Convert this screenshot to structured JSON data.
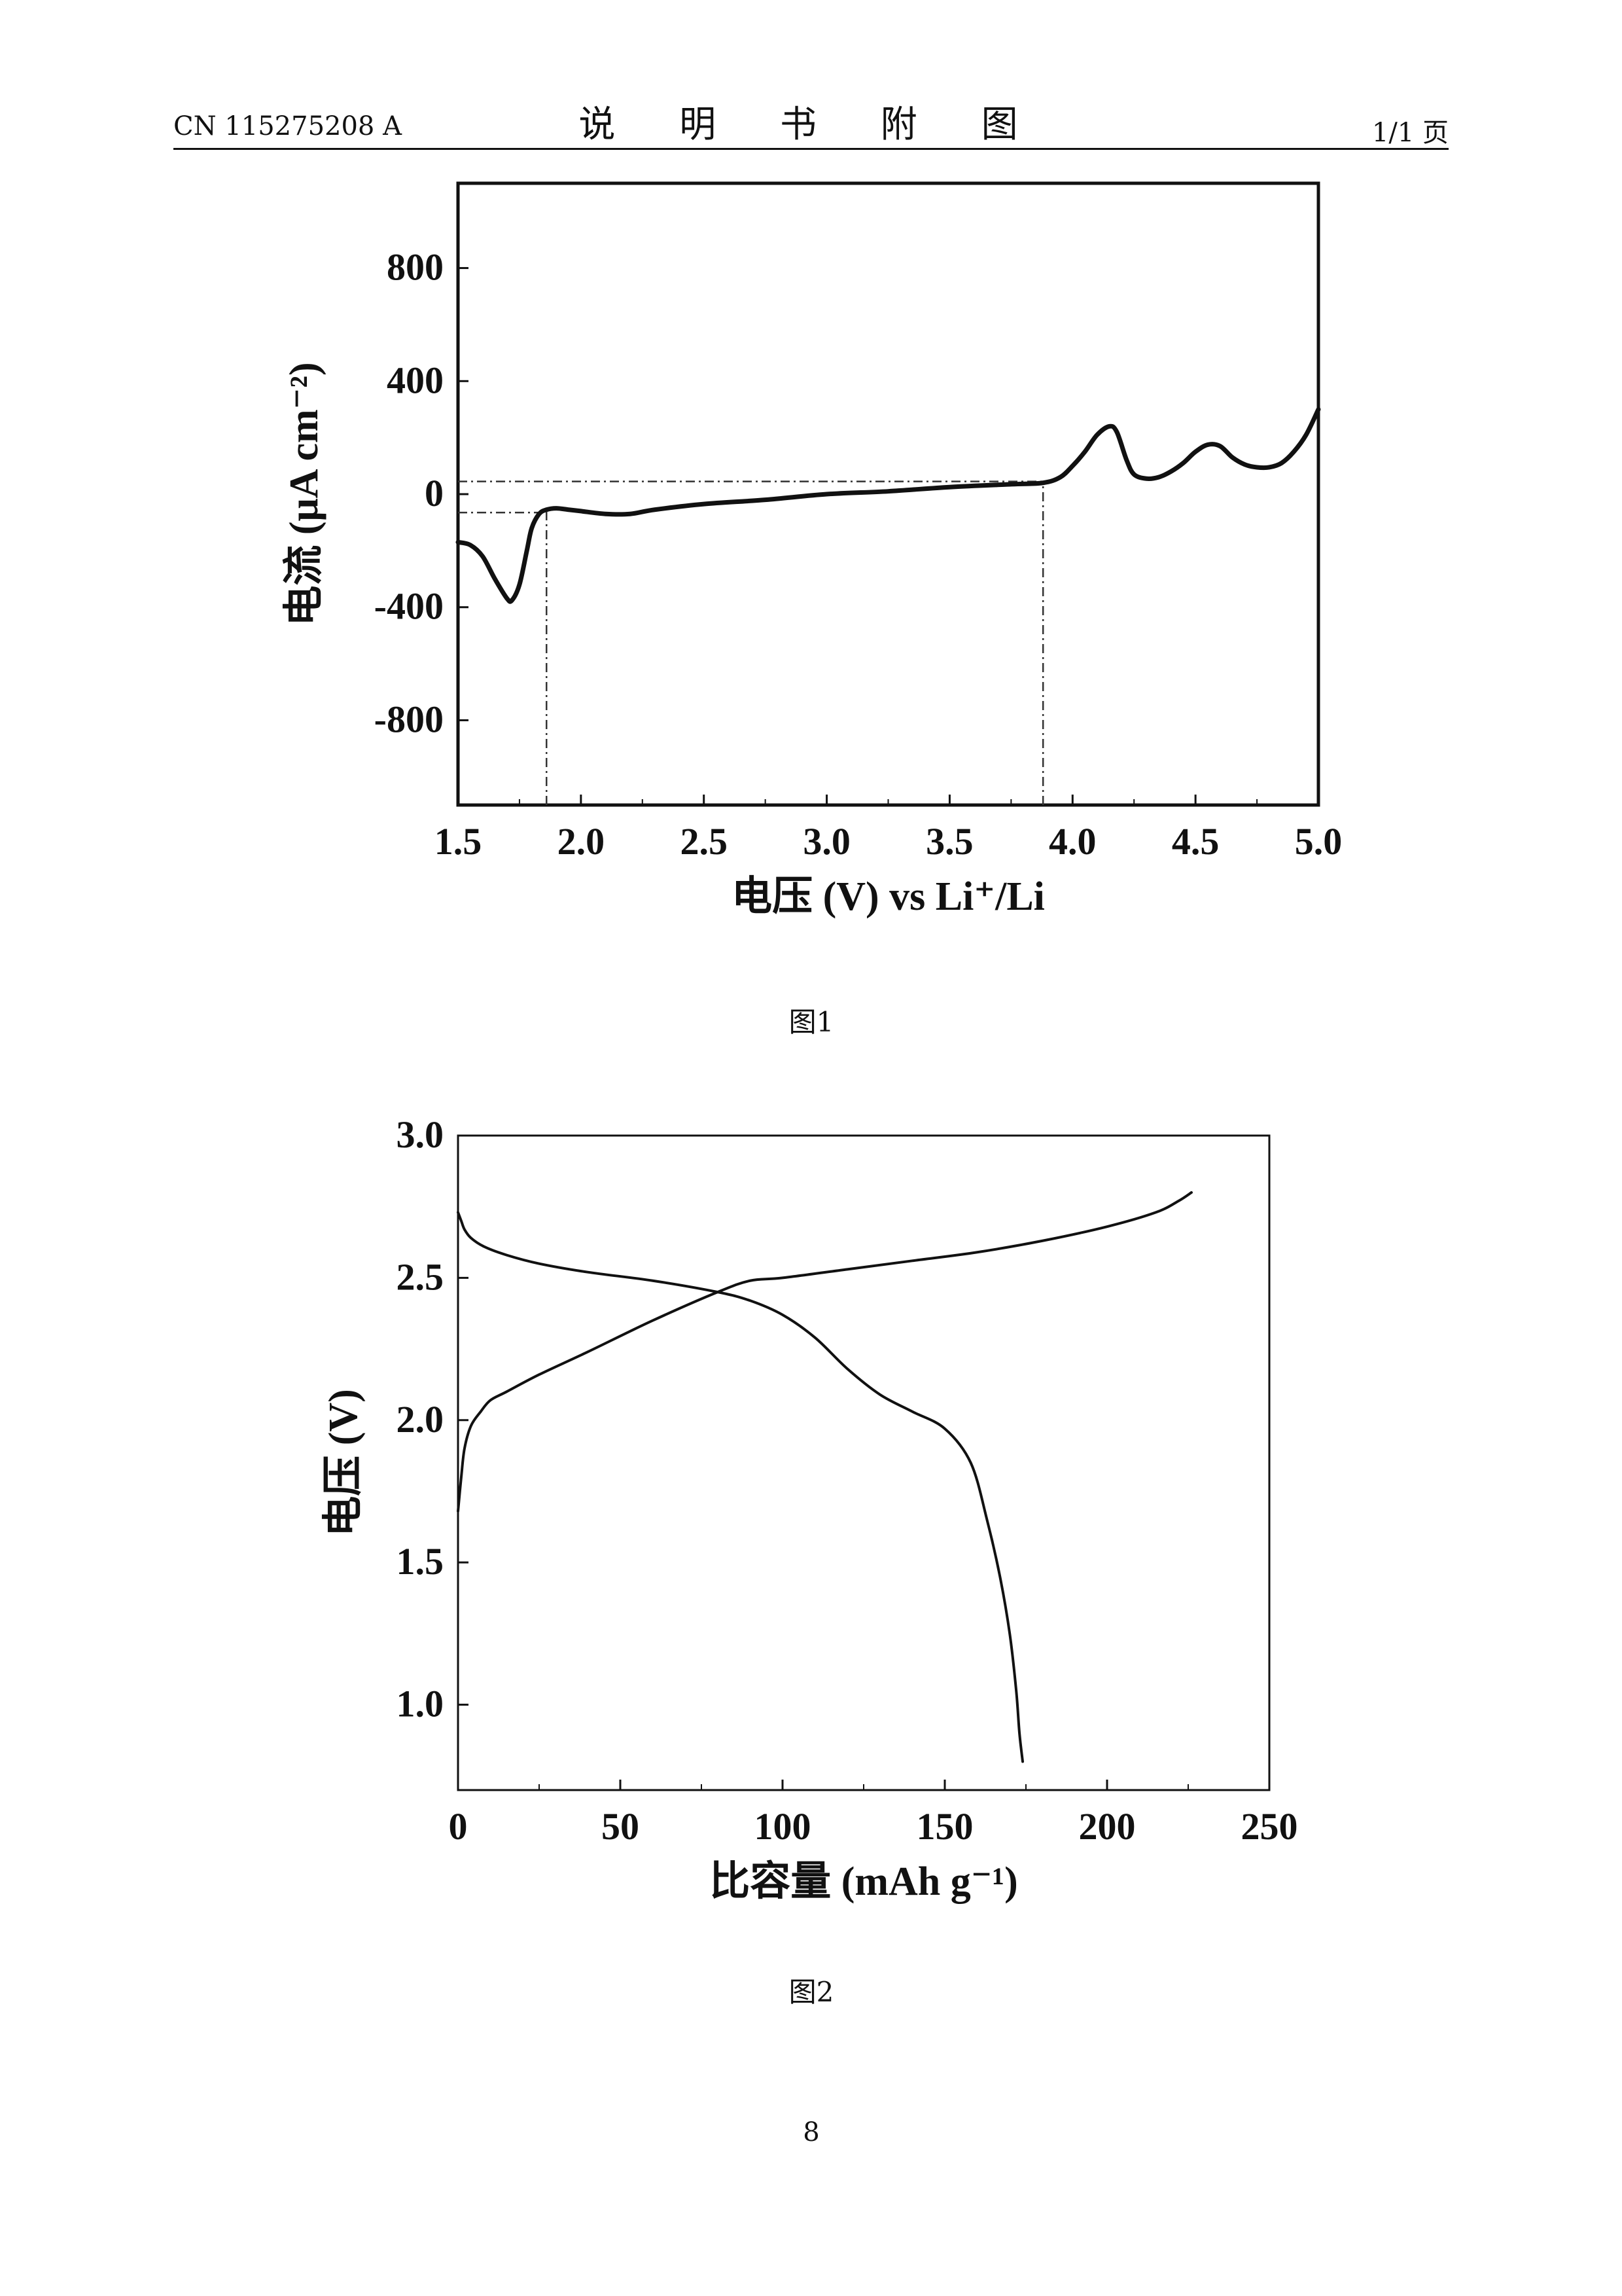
{
  "header": {
    "doc_number": "CN 115275208 A",
    "section_title": "说 明 书 附 图",
    "page_of": "1/1 页"
  },
  "figures": [
    {
      "caption": "图1"
    },
    {
      "caption": "图2"
    }
  ],
  "page_number": "8",
  "chart_data": [
    {
      "type": "line",
      "title": "",
      "xlabel": "电压 (V) vs Li⁺/Li",
      "ylabel": "电流 (μA cm⁻²)",
      "xlim": [
        1.5,
        5.0
      ],
      "ylim": [
        -1100,
        1100
      ],
      "xticks": [
        1.5,
        2.0,
        2.5,
        3.0,
        3.5,
        4.0,
        4.5,
        5.0
      ],
      "xtick_labels": [
        "1.5",
        "2.0",
        "2.5",
        "3.0",
        "3.5",
        "4.0",
        "4.5",
        "5.0"
      ],
      "yticks": [
        800,
        400,
        0,
        -400,
        -800
      ],
      "ytick_labels": [
        "800",
        "400",
        "0",
        "-400",
        "-800"
      ],
      "grid": false,
      "legend": null,
      "series": [
        {
          "x": [
            1.5,
            1.55,
            1.6,
            1.65,
            1.7,
            1.72,
            1.75,
            1.78,
            1.8,
            1.83,
            1.86,
            1.9,
            1.95,
            2.0,
            2.1,
            2.2,
            2.3,
            2.5,
            2.75,
            3.0,
            3.25,
            3.5,
            3.75,
            3.88,
            3.95,
            4.0,
            4.05,
            4.1,
            4.15,
            4.18,
            4.22,
            4.25,
            4.3,
            4.35,
            4.4,
            4.45,
            4.5,
            4.55,
            4.6,
            4.65,
            4.7,
            4.75,
            4.8,
            4.85,
            4.9,
            4.95,
            5.0
          ],
          "y": [
            -170,
            -180,
            -220,
            -300,
            -370,
            -375,
            -320,
            -200,
            -120,
            -70,
            -55,
            -50,
            -55,
            -60,
            -70,
            -70,
            -55,
            -35,
            -20,
            0,
            10,
            25,
            35,
            40,
            60,
            100,
            150,
            210,
            240,
            220,
            120,
            70,
            55,
            60,
            80,
            110,
            150,
            175,
            170,
            130,
            105,
            95,
            95,
            110,
            150,
            210,
            300
          ]
        }
      ],
      "reference_lines": [
        {
          "type": "h",
          "y": 45,
          "x_from": 1.5,
          "x_to": 3.88
        },
        {
          "type": "h",
          "y": -65,
          "x_from": 1.5,
          "x_to": 1.86
        },
        {
          "type": "v",
          "x": 1.86,
          "y_from": -1100,
          "y_to": -60
        },
        {
          "type": "v",
          "x": 3.88,
          "y_from": -1100,
          "y_to": 40
        }
      ]
    },
    {
      "type": "line",
      "title": "",
      "xlabel": "比容量 (mAh g⁻¹)",
      "ylabel": "电压 (V)",
      "xlim": [
        0,
        250
      ],
      "ylim": [
        0.7,
        3.0
      ],
      "xticks": [
        0,
        50,
        100,
        150,
        200,
        250
      ],
      "xtick_labels": [
        "0",
        "50",
        "100",
        "150",
        "200",
        "250"
      ],
      "yticks": [
        1.0,
        1.5,
        2.0,
        2.5,
        3.0
      ],
      "ytick_labels": [
        "1.0",
        "1.5",
        "2.0",
        "2.5",
        "3.0"
      ],
      "grid": false,
      "legend": null,
      "series": [
        {
          "x": [
            0,
            1,
            2,
            4,
            8,
            15,
            25,
            40,
            60,
            80,
            90,
            100,
            110,
            120,
            130,
            140,
            150,
            158,
            163,
            167,
            170,
            172,
            173,
            174
          ],
          "y": [
            2.73,
            2.7,
            2.67,
            2.64,
            2.61,
            2.58,
            2.55,
            2.52,
            2.49,
            2.45,
            2.42,
            2.37,
            2.29,
            2.18,
            2.09,
            2.03,
            1.97,
            1.85,
            1.65,
            1.45,
            1.25,
            1.05,
            0.9,
            0.8
          ]
        },
        {
          "x": [
            0,
            1,
            2,
            4,
            7,
            10,
            15,
            25,
            40,
            60,
            80,
            90,
            100,
            120,
            140,
            160,
            180,
            200,
            215,
            222,
            226
          ],
          "y": [
            1.68,
            1.8,
            1.9,
            1.98,
            2.03,
            2.07,
            2.1,
            2.16,
            2.24,
            2.35,
            2.45,
            2.49,
            2.5,
            2.53,
            2.56,
            2.59,
            2.63,
            2.68,
            2.73,
            2.77,
            2.8
          ]
        }
      ]
    }
  ]
}
